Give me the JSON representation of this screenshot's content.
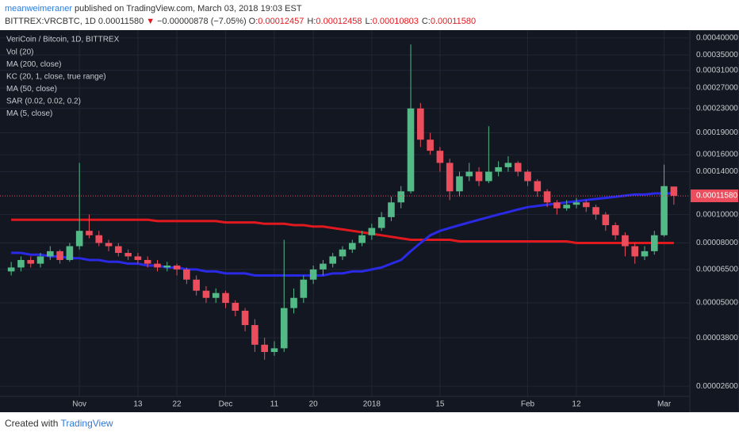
{
  "header": {
    "author": "meanweimeraner",
    "published": "published on TradingView.com, March 03, 2018 19:03 EST",
    "symbol": "BITTREX:VRCBTC, 1D",
    "last": "0.00011580",
    "arrow": "▼",
    "change": "−0.00000878 (−7.05%)",
    "ohlc": [
      {
        "label": "O:",
        "value": "0.00012457"
      },
      {
        "label": "H:",
        "value": "0.00012458"
      },
      {
        "label": "L:",
        "value": "0.00010803"
      },
      {
        "label": "C:",
        "value": "0.00011580"
      }
    ]
  },
  "footer": {
    "text": "Created with",
    "brand": "TradingView"
  },
  "chart_data": {
    "type": "candlestick",
    "title": "VeriCoin / Bitcoin, 1D, BITTREX",
    "up_color": "#53b987",
    "down_color": "#eb4d5c",
    "log_scale": true,
    "grid": true,
    "categories": [
      null,
      null,
      null,
      null,
      null,
      null,
      null,
      "Nov",
      null,
      null,
      null,
      null,
      null,
      "13",
      null,
      null,
      null,
      "22",
      null,
      null,
      null,
      null,
      "Dec",
      null,
      null,
      null,
      null,
      "11",
      null,
      null,
      null,
      "20",
      null,
      null,
      null,
      null,
      null,
      "2018",
      null,
      null,
      null,
      null,
      null,
      null,
      "15",
      null,
      null,
      null,
      null,
      null,
      null,
      null,
      null,
      "Feb",
      null,
      null,
      null,
      null,
      "12",
      null,
      null,
      null,
      null,
      null,
      null,
      null,
      null,
      "Mar",
      null
    ],
    "open": [
      6.4e-05,
      6.6e-05,
      7e-05,
      6.8e-05,
      7.2e-05,
      7.5e-05,
      7e-05,
      7.8e-05,
      8.8e-05,
      8.5e-05,
      8e-05,
      7.8e-05,
      7.4e-05,
      7.2e-05,
      7e-05,
      6.8e-05,
      6.6e-05,
      6.7e-05,
      6.5e-05,
      6e-05,
      5.5e-05,
      5.2e-05,
      5.4e-05,
      5e-05,
      4.7e-05,
      4.2e-05,
      3.6e-05,
      3.4e-05,
      3.5e-05,
      4.8e-05,
      5.2e-05,
      6e-05,
      6.5e-05,
      6.8e-05,
      7.2e-05,
      7.6e-05,
      8e-05,
      8.5e-05,
      9e-05,
      9.8e-05,
      0.00011,
      0.00012,
      0.00023,
      0.00018,
      0.000165,
      0.00015,
      0.00012,
      0.000135,
      0.00014,
      0.00013,
      0.00014,
      0.000145,
      0.00015,
      0.00014,
      0.00013,
      0.00012,
      0.00011,
      0.000105,
      0.000108,
      0.00011,
      0.000106,
      0.0001,
      9.2e-05,
      8.5e-05,
      7.8e-05,
      7.2e-05,
      7.5e-05,
      8.5e-05,
      0.00012457
    ],
    "high": [
      6.9e-05,
      7.2e-05,
      7.2e-05,
      7.4e-05,
      7.8e-05,
      7.6e-05,
      8e-05,
      0.00015,
      0.0001,
      8.8e-05,
      8.2e-05,
      8e-05,
      7.6e-05,
      7.4e-05,
      7.2e-05,
      7e-05,
      6.9e-05,
      6.8e-05,
      6.6e-05,
      6.2e-05,
      5.7e-05,
      5.6e-05,
      5.5e-05,
      5.1e-05,
      4.8e-05,
      4.4e-05,
      3.8e-05,
      3.7e-05,
      8.2e-05,
      5.6e-05,
      6.2e-05,
      6.7e-05,
      7e-05,
      7.4e-05,
      7.8e-05,
      8.2e-05,
      8.8e-05,
      9.3e-05,
      0.000102,
      0.000115,
      0.000125,
      0.00038,
      0.00024,
      0.00019,
      0.00017,
      0.000155,
      0.00014,
      0.00015,
      0.000145,
      0.0002,
      0.000152,
      0.000158,
      0.000152,
      0.000142,
      0.000132,
      0.000122,
      0.000112,
      0.000112,
      0.000114,
      0.000112,
      0.000108,
      0.000102,
      9.4e-05,
      8.7e-05,
      8e-05,
      7.8e-05,
      8.8e-05,
      0.000148,
      0.00012458
    ],
    "low": [
      6.2e-05,
      6.4e-05,
      6.6e-05,
      6.6e-05,
      7e-05,
      6.8e-05,
      6.9e-05,
      7.6e-05,
      8.3e-05,
      7.8e-05,
      7.5e-05,
      7.2e-05,
      7e-05,
      6.8e-05,
      6.6e-05,
      6.4e-05,
      6.4e-05,
      6.2e-05,
      5.8e-05,
      5.3e-05,
      5e-05,
      5e-05,
      4.8e-05,
      4.5e-05,
      4e-05,
      3.4e-05,
      3.2e-05,
      3.3e-05,
      3.4e-05,
      4.6e-05,
      5e-05,
      5.8e-05,
      6.2e-05,
      6.6e-05,
      7e-05,
      7.4e-05,
      7.8e-05,
      8.2e-05,
      8.8e-05,
      9.5e-05,
      0.000105,
      0.000118,
      0.00017,
      0.00016,
      0.00014,
      0.000112,
      0.000115,
      0.00013,
      0.000125,
      0.000128,
      0.000135,
      0.00014,
      0.000135,
      0.000125,
      0.000115,
      0.000106,
      0.0001,
      0.000103,
      0.000105,
      0.000102,
      9.6e-05,
      8.8e-05,
      8.2e-05,
      7.2e-05,
      6.8e-05,
      7e-05,
      7.3e-05,
      8.4e-05,
      0.00010803
    ],
    "close": [
      6.6e-05,
      7e-05,
      6.8e-05,
      7.2e-05,
      7.5e-05,
      7e-05,
      7.8e-05,
      8.8e-05,
      8.5e-05,
      8e-05,
      7.8e-05,
      7.4e-05,
      7.2e-05,
      7e-05,
      6.8e-05,
      6.6e-05,
      6.7e-05,
      6.5e-05,
      6e-05,
      5.5e-05,
      5.2e-05,
      5.4e-05,
      5e-05,
      4.7e-05,
      4.2e-05,
      3.6e-05,
      3.4e-05,
      3.5e-05,
      4.8e-05,
      5.2e-05,
      6e-05,
      6.5e-05,
      6.8e-05,
      7.2e-05,
      7.6e-05,
      8e-05,
      8.5e-05,
      9e-05,
      9.8e-05,
      0.00011,
      0.00012,
      0.00023,
      0.00018,
      0.000165,
      0.00015,
      0.00012,
      0.000135,
      0.00014,
      0.00013,
      0.00014,
      0.000145,
      0.00015,
      0.00014,
      0.00013,
      0.00012,
      0.00011,
      0.000105,
      0.000108,
      0.00011,
      0.000106,
      0.0001,
      9.2e-05,
      8.5e-05,
      7.8e-05,
      7.2e-05,
      7.5e-05,
      8.5e-05,
      0.000125,
      0.0001158
    ],
    "series": [
      {
        "name": "Vol (20)"
      },
      {
        "name": "MA (200, close)",
        "color": "#e0191e",
        "width": 3,
        "values": [
          9.6e-05,
          9.6e-05,
          9.6e-05,
          9.6e-05,
          9.6e-05,
          9.6e-05,
          9.6e-05,
          9.6e-05,
          9.6e-05,
          9.6e-05,
          9.6e-05,
          9.6e-05,
          9.6e-05,
          9.6e-05,
          9.6e-05,
          9.5e-05,
          9.5e-05,
          9.5e-05,
          9.5e-05,
          9.5e-05,
          9.5e-05,
          9.5e-05,
          9.4e-05,
          9.4e-05,
          9.4e-05,
          9.4e-05,
          9.3e-05,
          9.3e-05,
          9.3e-05,
          9.2e-05,
          9.2e-05,
          9.1e-05,
          9.1e-05,
          9e-05,
          8.9e-05,
          8.8e-05,
          8.7e-05,
          8.6e-05,
          8.5e-05,
          8.4e-05,
          8.3e-05,
          8.2e-05,
          8.2e-05,
          8.2e-05,
          8.2e-05,
          8.2e-05,
          8.1e-05,
          8.1e-05,
          8.1e-05,
          8.1e-05,
          8.1e-05,
          8.1e-05,
          8.1e-05,
          8.1e-05,
          8.1e-05,
          8.1e-05,
          8.1e-05,
          8.1e-05,
          8e-05,
          8e-05,
          8e-05,
          8e-05,
          8e-05,
          8e-05,
          8e-05,
          8e-05,
          8e-05,
          8e-05,
          8e-05
        ]
      },
      {
        "name": "KC (20, 1, close, true range)"
      },
      {
        "name": "MA (50, close)",
        "color": "#2a2ae6",
        "width": 3,
        "values": [
          7.4e-05,
          7.4e-05,
          7.3e-05,
          7.3e-05,
          7.2e-05,
          7.2e-05,
          7.1e-05,
          7.1e-05,
          7e-05,
          7e-05,
          6.9e-05,
          6.9e-05,
          6.8e-05,
          6.8e-05,
          6.7e-05,
          6.7e-05,
          6.6e-05,
          6.6e-05,
          6.5e-05,
          6.5e-05,
          6.4e-05,
          6.4e-05,
          6.3e-05,
          6.3e-05,
          6.3e-05,
          6.2e-05,
          6.2e-05,
          6.2e-05,
          6.2e-05,
          6.2e-05,
          6.2e-05,
          6.2e-05,
          6.2e-05,
          6.3e-05,
          6.3e-05,
          6.4e-05,
          6.4e-05,
          6.5e-05,
          6.6e-05,
          6.8e-05,
          7e-05,
          7.5e-05,
          8e-05,
          8.5e-05,
          8.8e-05,
          9e-05,
          9.2e-05,
          9.4e-05,
          9.6e-05,
          9.8e-05,
          0.0001,
          0.000102,
          0.000104,
          0.000106,
          0.000107,
          0.000108,
          0.000109,
          0.00011,
          0.000111,
          0.000112,
          0.000113,
          0.000114,
          0.000115,
          0.000116,
          0.000117,
          0.000117,
          0.000118,
          0.000118,
          0.000118
        ]
      },
      {
        "name": "SAR (0.02, 0.02, 0.2)"
      },
      {
        "name": "MA (5, close)"
      }
    ],
    "ylim": [
      2.4e-05,
      0.00042
    ],
    "yticks": [
      {
        "value": 0.0004,
        "label": "0.00040000"
      },
      {
        "value": 0.00035,
        "label": "0.00035000"
      },
      {
        "value": 0.00031,
        "label": "0.00031000"
      },
      {
        "value": 0.00027,
        "label": "0.00027000"
      },
      {
        "value": 0.00023,
        "label": "0.00023000"
      },
      {
        "value": 0.00019,
        "label": "0.00019000"
      },
      {
        "value": 0.00016,
        "label": "0.00016000"
      },
      {
        "value": 0.00014,
        "label": "0.00014000"
      },
      {
        "value": 0.0001,
        "label": "0.00010000"
      },
      {
        "value": 8e-05,
        "label": "0.00008000"
      },
      {
        "value": 6.5e-05,
        "label": "0.00006500"
      },
      {
        "value": 5e-05,
        "label": "0.00005000"
      },
      {
        "value": 3.8e-05,
        "label": "0.00003800"
      },
      {
        "value": 2.6e-05,
        "label": "0.00002600"
      }
    ]
  }
}
